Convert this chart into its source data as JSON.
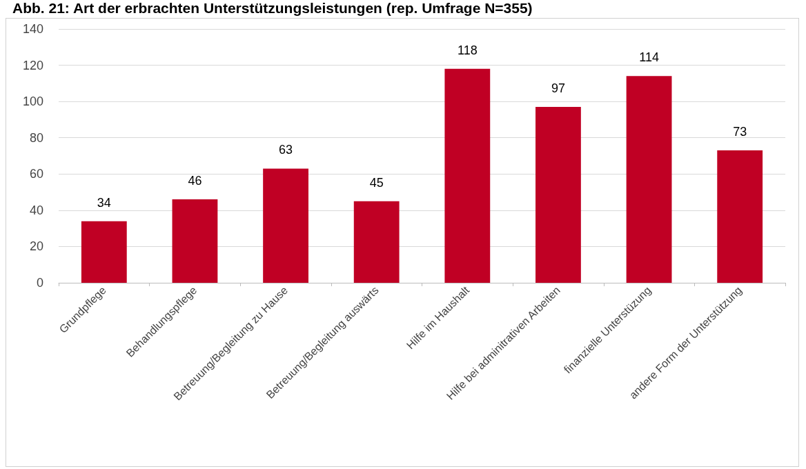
{
  "chart_data": {
    "type": "bar",
    "title": "Abb. 21: Art der erbrachten Unterstützungsleistungen (rep. Umfrage N=355)",
    "categories": [
      "Grundpflege",
      "Behandlungspflege",
      "Betreuung/Begleitung zu Hause",
      "Betreuung/Begleitung auswärts",
      "Hilfe im Haushalt",
      "Hilfe bei adminitrativen Arbeiten",
      "finanzielle Unterstüzung",
      "andere Form der Unterstützung"
    ],
    "values": [
      34,
      46,
      63,
      45,
      118,
      97,
      114,
      73
    ],
    "color": "#c00024",
    "ylim": [
      0,
      140
    ],
    "yticks": [
      0,
      20,
      40,
      60,
      80,
      100,
      120,
      140
    ],
    "grid": "y",
    "data_labels": true
  }
}
